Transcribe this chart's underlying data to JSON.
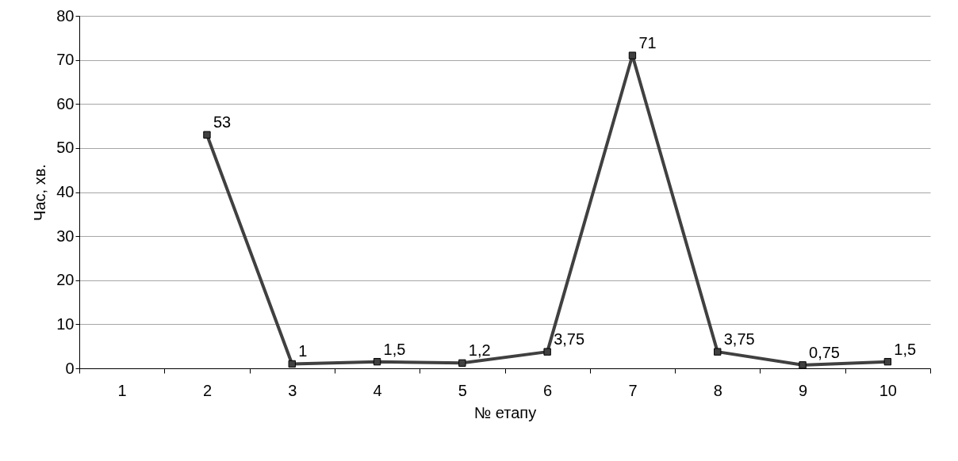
{
  "chart_data": {
    "type": "line",
    "xlabel": "№ етапу",
    "ylabel": "Час, хв.",
    "categories": [
      "1",
      "2",
      "3",
      "4",
      "5",
      "6",
      "7",
      "8",
      "9",
      "10"
    ],
    "series": [
      {
        "color": "#404040",
        "values": [
          null,
          53,
          1,
          1.5,
          1.2,
          3.75,
          71,
          3.75,
          0.75,
          1.5
        ],
        "value_labels": [
          null,
          "53",
          "1",
          "1,5",
          "1,2",
          "3,75",
          "71",
          "3,75",
          "0,75",
          "1,5"
        ]
      }
    ],
    "ylim": [
      0,
      80
    ],
    "yticks": [
      0,
      10,
      20,
      30,
      40,
      50,
      60,
      70,
      80
    ],
    "grid": "y",
    "marker": "square",
    "line_style": "solid"
  }
}
